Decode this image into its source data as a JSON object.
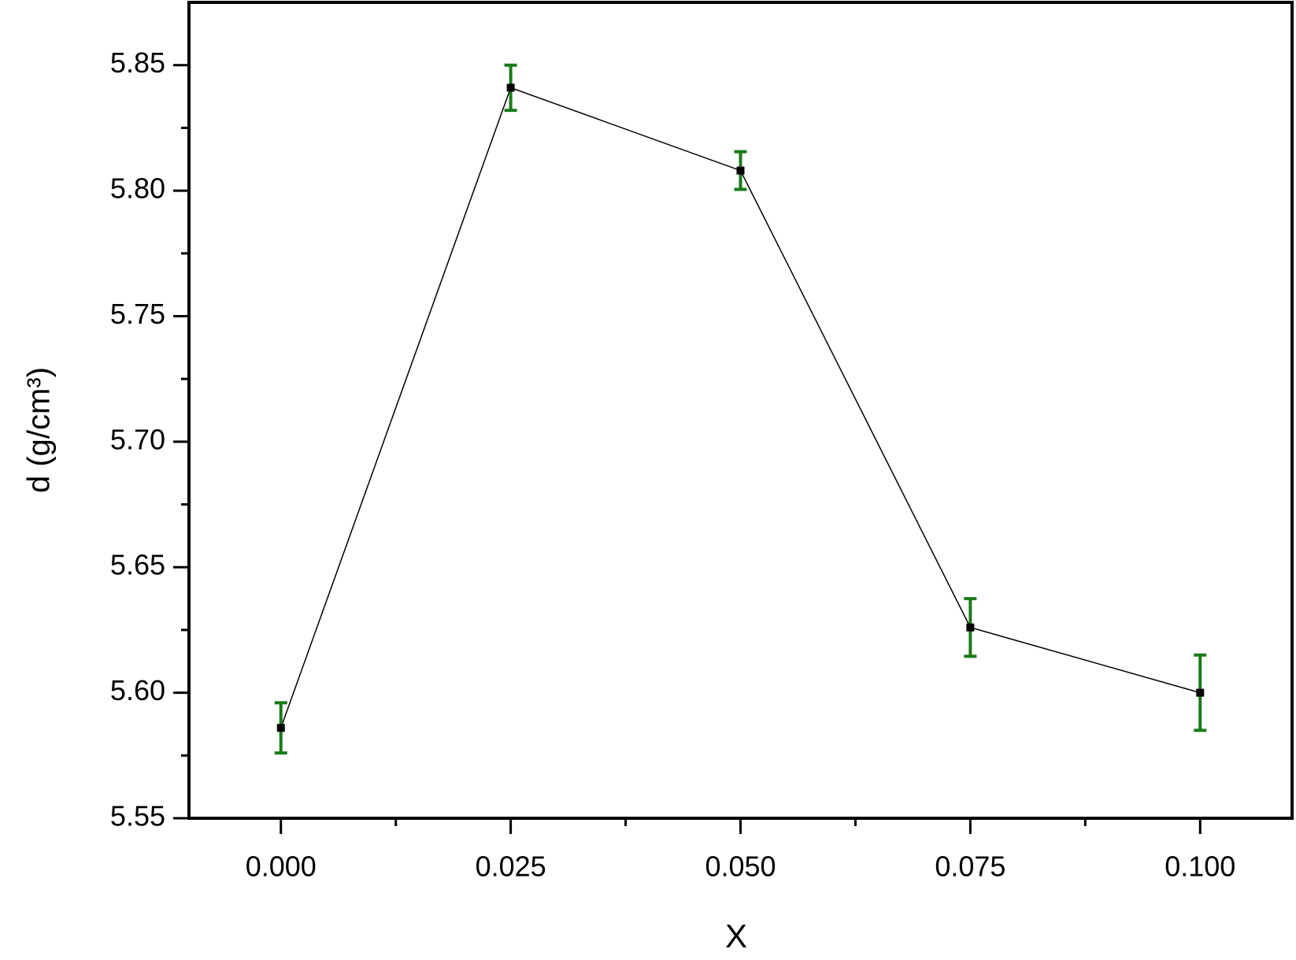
{
  "chart_data": {
    "type": "line",
    "x_label": "X",
    "y_label": "d (g/cm³)",
    "x": [
      0.0,
      0.025,
      0.05,
      0.075,
      0.1
    ],
    "values": [
      5.586,
      5.841,
      5.808,
      5.626,
      5.6
    ],
    "errors": [
      0.01,
      0.009,
      0.0075,
      0.0115,
      0.015
    ],
    "color": "#000000",
    "error_color": "#1a7a1a",
    "xlim": [
      -0.01,
      0.11
    ],
    "ylim": [
      5.55,
      5.875
    ],
    "xticks": [
      {
        "value": 0.0,
        "label": "0.000"
      },
      {
        "value": 0.025,
        "label": "0.025"
      },
      {
        "value": 0.05,
        "label": "0.050"
      },
      {
        "value": 0.075,
        "label": "0.075"
      },
      {
        "value": 0.1,
        "label": "0.100"
      }
    ],
    "yticks": [
      5.55,
      {
        "value": 5.6,
        "label": "5.60"
      },
      5.65,
      {
        "value": 5.7,
        "label": "5.70"
      },
      5.75,
      {
        "value": 5.8,
        "label": "5.80"
      },
      5.85
    ],
    "xminorticks": [
      0.0125,
      0.0375,
      0.0625,
      0.0875
    ],
    "yminorticks": [
      5.575,
      5.625,
      5.675,
      5.725,
      5.775,
      5.825
    ],
    "grid": false
  }
}
